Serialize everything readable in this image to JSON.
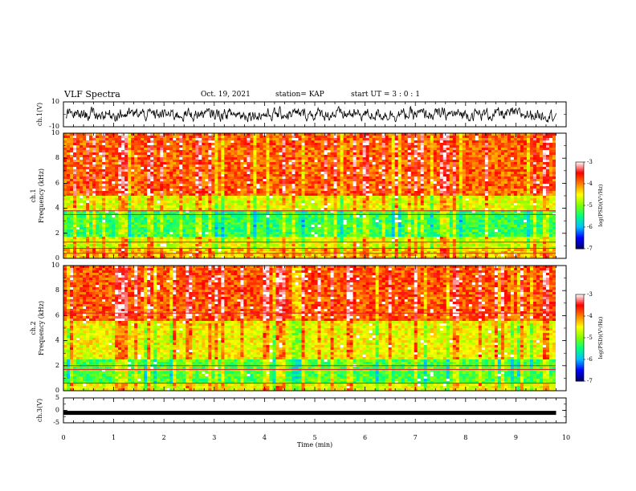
{
  "header": {
    "title": "VLF Spectra",
    "date": "Oct. 19, 2021",
    "station": "station= KAP",
    "start": "start  UT  =   3  : 0  : 1"
  },
  "chart_data": [
    {
      "type": "line",
      "panel": "ch1-waveform",
      "ylabel": "ch.1(V)",
      "ylim": [
        -10,
        10
      ],
      "yticks": [
        "10",
        "-10"
      ],
      "xlim": [
        0,
        10
      ],
      "series": [
        {
          "values_description_amplitude_range": [
            -7,
            7
          ]
        }
      ]
    },
    {
      "type": "heatmap",
      "panel": "ch1-spectrogram",
      "ylabel": "ch.1\nFrequency (kHz)",
      "ylim": [
        0,
        10
      ],
      "yticks": [
        "0",
        "2",
        "4",
        "6",
        "8",
        "10"
      ],
      "xlim": [
        0,
        10
      ],
      "colorbar": {
        "label": "log(PSD)(V²/Hz)",
        "range": [
          -7,
          -3
        ],
        "ticks": [
          "-3",
          "-4",
          "-5",
          "-6",
          "-7"
        ]
      }
    },
    {
      "type": "heatmap",
      "panel": "ch2-spectrogram",
      "ylabel": "ch.2\nFrequency (kHz)",
      "ylim": [
        0,
        10
      ],
      "yticks": [
        "0",
        "2",
        "4",
        "6",
        "8",
        "10"
      ],
      "xlim": [
        0,
        10
      ],
      "colorbar": {
        "label": "log(PSD)(V²/Hz)",
        "range": [
          -7,
          -3
        ],
        "ticks": [
          "-3",
          "-4",
          "-5",
          "-6",
          "-7"
        ]
      }
    },
    {
      "type": "line",
      "panel": "ch3-waveform",
      "ylabel": "ch.3(V)",
      "ylim": [
        -5,
        5
      ],
      "yticks": [
        "5",
        "0",
        "-5"
      ],
      "xlim": [
        0,
        10
      ],
      "series": [
        {
          "constant_value": -1
        }
      ]
    }
  ],
  "x_axis": {
    "label": "Time (min)",
    "ticks": [
      "0",
      "1",
      "2",
      "3",
      "4",
      "5",
      "6",
      "7",
      "8",
      "9",
      "10"
    ]
  },
  "colors": {
    "waveform": "#000000",
    "colormap": [
      "#000066",
      "#0000ff",
      "#00bfff",
      "#00ff80",
      "#80ff00",
      "#ffff00",
      "#ff8000",
      "#ff0000",
      "#ffffff"
    ]
  }
}
